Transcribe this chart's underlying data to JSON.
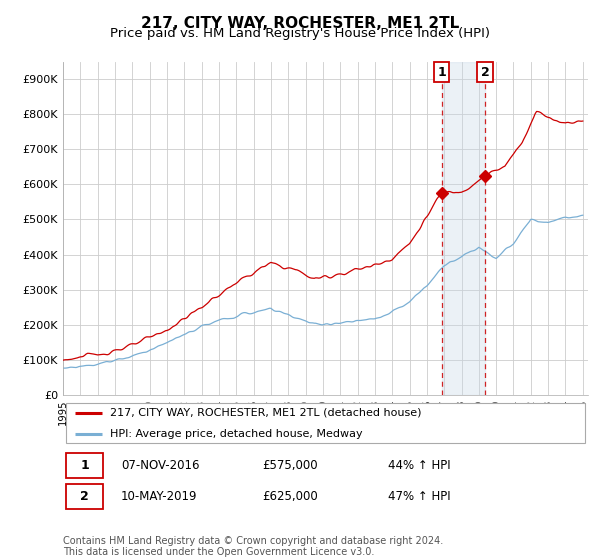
{
  "title": "217, CITY WAY, ROCHESTER, ME1 2TL",
  "subtitle": "Price paid vs. HM Land Registry's House Price Index (HPI)",
  "ylim": [
    0,
    950000
  ],
  "yticks": [
    0,
    100000,
    200000,
    300000,
    400000,
    500000,
    600000,
    700000,
    800000,
    900000
  ],
  "ytick_labels": [
    "£0",
    "£100K",
    "£200K",
    "£300K",
    "£400K",
    "£500K",
    "£600K",
    "£700K",
    "£800K",
    "£900K"
  ],
  "red_line_color": "#cc0000",
  "blue_line_color": "#7aafd4",
  "marker1_date": 2016.85,
  "marker1_price": 575000,
  "marker2_date": 2019.36,
  "marker2_price": 625000,
  "marker1_label": "1",
  "marker2_label": "2",
  "vline_color": "#cc0000",
  "shade_color": "#c8d8e8",
  "legend_label_red": "217, CITY WAY, ROCHESTER, ME1 2TL (detached house)",
  "legend_label_blue": "HPI: Average price, detached house, Medway",
  "note1_date": "07-NOV-2016",
  "note1_price": "£575,000",
  "note1_hpi": "44% ↑ HPI",
  "note2_date": "10-MAY-2019",
  "note2_price": "£625,000",
  "note2_hpi": "47% ↑ HPI",
  "footer": "Contains HM Land Registry data © Crown copyright and database right 2024.\nThis data is licensed under the Open Government Licence v3.0.",
  "background_color": "#ffffff",
  "grid_color": "#cccccc",
  "title_fontsize": 11,
  "subtitle_fontsize": 9.5
}
